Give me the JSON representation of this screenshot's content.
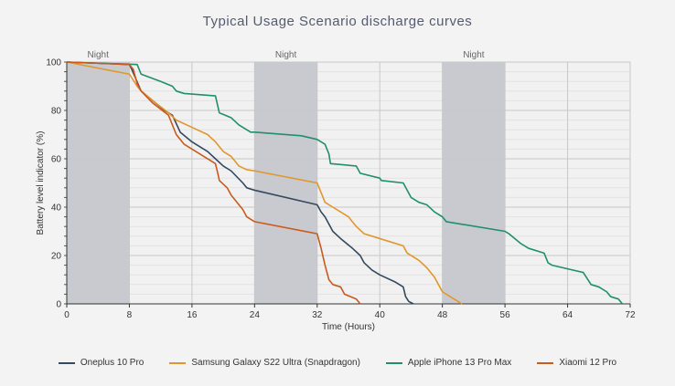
{
  "chart_data": {
    "type": "line",
    "title": "Typical Usage Scenario discharge curves",
    "xlabel": "Time (Hours)",
    "ylabel": "Battery level indicator (%)",
    "xlim": [
      0,
      72
    ],
    "ylim": [
      0,
      100
    ],
    "xticks": [
      0,
      8,
      16,
      24,
      32,
      40,
      48,
      56,
      64,
      72
    ],
    "yticks": [
      0,
      20,
      40,
      60,
      80,
      100
    ],
    "grid": true,
    "legend_position": "bottom",
    "night_bands": [
      {
        "label": "Night",
        "range": [
          0,
          8
        ]
      },
      {
        "label": "Night",
        "range": [
          24,
          32
        ]
      },
      {
        "label": "Night",
        "range": [
          48,
          56
        ]
      }
    ],
    "series": [
      {
        "name": "Oneplus 10 Pro",
        "color": "#34495e",
        "points": [
          [
            0,
            100
          ],
          [
            8,
            99
          ],
          [
            8.3,
            97
          ],
          [
            9.5,
            88
          ],
          [
            11,
            84
          ],
          [
            12.5,
            80
          ],
          [
            13.5,
            78
          ],
          [
            14.5,
            71
          ],
          [
            16,
            67
          ],
          [
            18,
            63
          ],
          [
            19,
            60
          ],
          [
            20,
            57
          ],
          [
            21,
            55
          ],
          [
            22.5,
            50
          ],
          [
            23,
            48
          ],
          [
            24,
            47
          ],
          [
            32,
            41
          ],
          [
            32.5,
            38
          ],
          [
            33,
            36
          ],
          [
            34,
            30
          ],
          [
            35,
            27
          ],
          [
            36.5,
            23
          ],
          [
            37.5,
            20
          ],
          [
            38,
            17
          ],
          [
            39,
            14
          ],
          [
            40,
            12
          ],
          [
            42,
            9
          ],
          [
            43,
            7
          ],
          [
            43.3,
            3
          ],
          [
            43.7,
            1
          ],
          [
            44.3,
            0
          ]
        ]
      },
      {
        "name": "Samsung Galaxy S22 Ultra (Snapdragon)",
        "color": "#e0962e",
        "points": [
          [
            0,
            100
          ],
          [
            8,
            95
          ],
          [
            9,
            90
          ],
          [
            9.5,
            88
          ],
          [
            11,
            84
          ],
          [
            13,
            79
          ],
          [
            14,
            76
          ],
          [
            16,
            73
          ],
          [
            18,
            70
          ],
          [
            19,
            67
          ],
          [
            20,
            63
          ],
          [
            21,
            61
          ],
          [
            22,
            57
          ],
          [
            23,
            55.5
          ],
          [
            24,
            55
          ],
          [
            32,
            50
          ],
          [
            32.5,
            46
          ],
          [
            33,
            42
          ],
          [
            34,
            40
          ],
          [
            36,
            36
          ],
          [
            37,
            32
          ],
          [
            38,
            29
          ],
          [
            40,
            27
          ],
          [
            43,
            24
          ],
          [
            43.5,
            21
          ],
          [
            45,
            18
          ],
          [
            46,
            15
          ],
          [
            47,
            11
          ],
          [
            48,
            5
          ],
          [
            49,
            3
          ],
          [
            50.5,
            0
          ]
        ]
      },
      {
        "name": "Apple iPhone 13 Pro Max",
        "color": "#1f8f6c",
        "points": [
          [
            0,
            100
          ],
          [
            9,
            99
          ],
          [
            9.5,
            95
          ],
          [
            12,
            92
          ],
          [
            13.5,
            90
          ],
          [
            14,
            88
          ],
          [
            15,
            87
          ],
          [
            19,
            86
          ],
          [
            19.5,
            79
          ],
          [
            21,
            77
          ],
          [
            22,
            74
          ],
          [
            23,
            72
          ],
          [
            23.5,
            71
          ],
          [
            24,
            71
          ],
          [
            30,
            69.5
          ],
          [
            32,
            68
          ],
          [
            33,
            66
          ],
          [
            33.5,
            62
          ],
          [
            33.7,
            58
          ],
          [
            37,
            57
          ],
          [
            37.5,
            54
          ],
          [
            40,
            52
          ],
          [
            40.2,
            51
          ],
          [
            43,
            50
          ],
          [
            44,
            44
          ],
          [
            45,
            42
          ],
          [
            46,
            41
          ],
          [
            47,
            38
          ],
          [
            48,
            36
          ],
          [
            48.5,
            34
          ],
          [
            56,
            30
          ],
          [
            56.5,
            29
          ],
          [
            58,
            25
          ],
          [
            59,
            23
          ],
          [
            61,
            21
          ],
          [
            61.5,
            17
          ],
          [
            62,
            16
          ],
          [
            66,
            13
          ],
          [
            67,
            8
          ],
          [
            68,
            7
          ],
          [
            69,
            5
          ],
          [
            69.5,
            3
          ],
          [
            70.5,
            2
          ],
          [
            71,
            0
          ]
        ]
      },
      {
        "name": "Xiaomi 12 Pro",
        "color": "#c95a1e",
        "points": [
          [
            0,
            100
          ],
          [
            8,
            99
          ],
          [
            8.5,
            97
          ],
          [
            9,
            91
          ],
          [
            9.5,
            88
          ],
          [
            11,
            83
          ],
          [
            13,
            78
          ],
          [
            14,
            70
          ],
          [
            15,
            66
          ],
          [
            17,
            62
          ],
          [
            19,
            58
          ],
          [
            19.3,
            54
          ],
          [
            19.5,
            51
          ],
          [
            20.5,
            48
          ],
          [
            21,
            45
          ],
          [
            22,
            41
          ],
          [
            22.5,
            39
          ],
          [
            23,
            36
          ],
          [
            24,
            34
          ],
          [
            32,
            29
          ],
          [
            32.5,
            23
          ],
          [
            33,
            16
          ],
          [
            33.5,
            10
          ],
          [
            34,
            8
          ],
          [
            35,
            7
          ],
          [
            35.5,
            4
          ],
          [
            37,
            2
          ],
          [
            37.5,
            0
          ]
        ]
      }
    ]
  }
}
